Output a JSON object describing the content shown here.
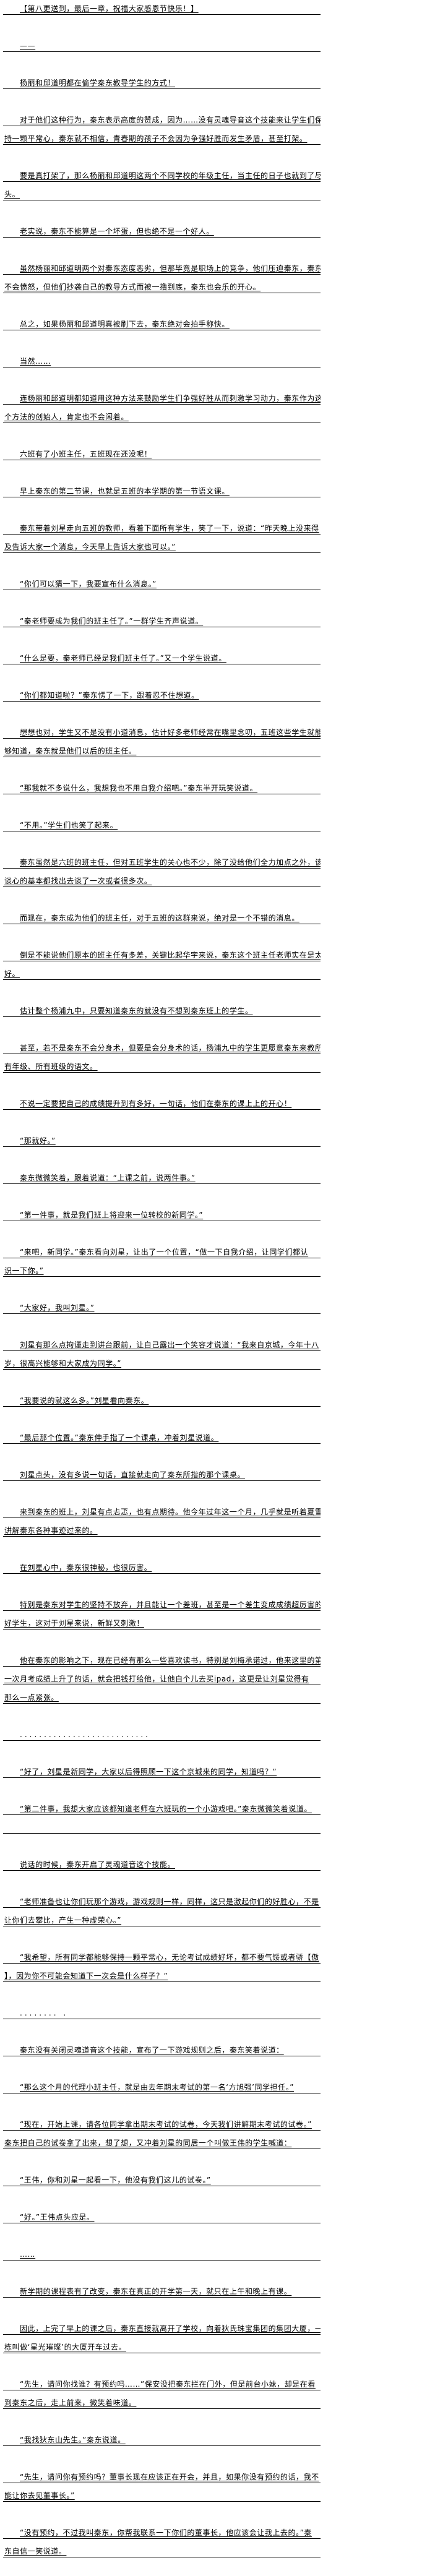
{
  "article": {
    "paragraphs": [
      {
        "lines": [
          "【第八更送到，最后一章，祝福大家感恩节快乐！】"
        ]
      },
      {
        "lines": [
          "——"
        ]
      },
      {
        "lines": [
          "杨丽和邱道明都在偷学秦东教导学生的方式！"
        ]
      },
      {
        "lines": [
          "对于他们这种行为，秦东表示高度的赞成，因为……没有灵魂导音这个技能来让学生们保",
          "持一颗平常心，秦东就不相信，青春期的孩子不会因为争强好胜而发生矛盾，甚至打架。"
        ]
      },
      {
        "lines": [
          "要是真打架了，那么杨丽和邱道明这两个不同学校的年级主任，当主任的日子也就到了尽",
          "头。"
        ]
      },
      {
        "lines": [
          "老实说，秦东不能算是一个坏蛋，但也绝不是一个好人。"
        ]
      },
      {
        "lines": [
          "虽然杨丽和邱道明两个对秦东态度恶劣，但那毕竟是职场上的竞争，他们压迫秦东，秦东",
          "不会愤怒，但他们抄袭自己的教导方式而被一撸到底，秦东也会乐的开心。"
        ]
      },
      {
        "lines": [
          "总之，如果杨丽和邱道明真被刷下去，秦东绝对会拍手称快。"
        ]
      },
      {
        "lines": [
          "当然……"
        ]
      },
      {
        "lines": [
          "连杨丽和邱道明都知道用这种方法来鼓励学生们争强好胜从而刺激学习动力，秦东作为这",
          "个方法的创始人，肯定也不会闲着。"
        ]
      },
      {
        "lines": [
          "六班有了小班主任，五班现在还没呢！"
        ]
      },
      {
        "lines": [
          "早上秦东的第二节课，也就是五班的本学期的第一节语文课。"
        ]
      },
      {
        "lines": [
          "秦东带着刘星走向五班的教师，看着下面所有学生，笑了一下，说道：“昨天晚上没来得",
          "及告诉大家一个消息，今天早上告诉大家也可以。”"
        ]
      },
      {
        "lines": [
          "“你们可以猜一下，我要宣布什么消息。”"
        ]
      },
      {
        "lines": [
          "“秦老师要成为我们的班主任了。”一群学生齐声说道。"
        ]
      },
      {
        "lines": [
          "“什么是要，秦老师已经是我们班主任了。”又一个学生说道。"
        ]
      },
      {
        "lines": [
          "“你们都知道啦？”秦东愣了一下，跟着忍不住想道。"
        ]
      },
      {
        "lines": [
          "想想也对，学生又不是没有小道消息，估计好多老师经常在嘴里念叨，五班这些学生就能",
          "够知道，秦东就是他们以后的班主任。"
        ]
      },
      {
        "lines": [
          "“那我就不多说什么，我想我也不用自我介绍吧。”秦东半开玩笑说道。"
        ]
      },
      {
        "lines": [
          "“不用。”学生们也笑了起来。"
        ]
      },
      {
        "lines": [
          "秦东虽然是六班的班主任，但对五班学生的关心也不少，除了没给他们全力加点之外，该",
          "谈心的基本都找出去谈了一次或者很多次。"
        ]
      },
      {
        "lines": [
          "而现在，秦东成为他们的班主任，对于五班的这群来说，绝对是一个不错的消息。"
        ]
      },
      {
        "lines": [
          "倒是不能说他们原本的班主任有多差，关键比起华宇来说，秦东这个班主任老师实在是太",
          "好。"
        ]
      },
      {
        "lines": [
          "估计整个杨浦九中，只要知道秦东的就没有不想到秦东班上的学生。"
        ]
      },
      {
        "lines": [
          "甚至，若不是秦东不会分身术，但要是会分身术的话，杨浦九中的学生更愿意秦东来教所",
          "有年级、所有班级的语文。"
        ]
      },
      {
        "lines": [
          "不说一定要把自己的成绩提升到有多好，一句话，他们在秦东的课上上的开心！"
        ]
      },
      {
        "lines": [
          "“那就好。”"
        ]
      },
      {
        "lines": [
          "秦东微微笑着，跟着说道：“上课之前，说两件事。”"
        ]
      },
      {
        "lines": [
          "“第一件事，就是我们班上将迎来一位转校的新同学。”"
        ]
      },
      {
        "lines": [
          "“来吧，新同学。”秦东看向刘星，让出了一个位置，“做一下自我介绍，让同学们都认",
          "识一下你。”"
        ]
      },
      {
        "lines": [
          "“大家好，我叫刘星。”"
        ]
      },
      {
        "lines": [
          "刘星有那么点拘谨走到讲台跟前，让自己露出一个笑容才说道：“我来自京城，今年十八",
          "岁，很高兴能够和大家成为同学。”"
        ]
      },
      {
        "lines": [
          "“我要说的就这么多。”刘星看向秦东。"
        ]
      },
      {
        "lines": [
          "“最后那个位置。”秦东伸手指了一个课桌，冲着刘星说道。"
        ]
      },
      {
        "lines": [
          "刘星点头，没有多说一句话，直接就走向了秦东所指的那个课桌。"
        ]
      },
      {
        "lines": [
          "来到秦东的班上，刘星有点忐忑，也有点期待。他今年过年这一个月，几乎就是听着夏雪",
          "讲解秦东各种事迹过来的。"
        ]
      },
      {
        "lines": [
          "在刘星心中，秦东很神秘，也很厉害。"
        ]
      },
      {
        "lines": [
          "特别是秦东对学生的坚持不放弃，并且能让一个差班，甚至是一个差生变成成绩超厉害的",
          "好学生，这对于刘星来说，新鲜又刺激！"
        ]
      },
      {
        "lines": [
          "他在秦东的影响之下，现在已经有那么一些喜欢读书，特别是刘梅承诺过，他来这里的第",
          "一次月考成绩上升了的话，就会把钱打给他，让他自个儿去买ipad，这更是让刘星觉得有",
          "那么一点紧张。"
        ]
      },
      {
        "lines": [
          "..........................."
        ],
        "dots": true
      },
      {
        "lines": [
          "“好了，刘星是新同学，大家以后得照顾一下这个京城来的同学，知道吗？”"
        ]
      },
      {
        "lines": [
          "“第二件事，我想大家应该都知道老师在六班玩的一个小游戏吧。”秦东微微笑着说道。",
          ""
        ]
      },
      {
        "lines": [
          "说话的时候，秦东开启了灵魂道音这个技能。"
        ]
      },
      {
        "lines": [
          "“老师准备也让你们玩那个游戏，游戏规则一样，同样，这只是激起你们的好胜心，不是",
          "让你们去攀比，产生一种虚荣心。”"
        ]
      },
      {
        "lines": [
          "“我希望，所有同学都能够保持一颗平常心，无论考试成绩好坏，都不要气馁或者骄【傲",
          "】，因为你不可能会知道下一次会是什么样子？”"
        ]
      },
      {
        "lines": [
          "........ ."
        ],
        "dots": true
      },
      {
        "lines": [
          "秦东没有关闭灵魂道音这个技能，宣布了一下游戏规则之后，秦东笑着说道："
        ]
      },
      {
        "lines": [
          "“那么这个月的代理小班主任，就是由去年期末考试的第一名‘方旭强’同学担任。”"
        ]
      },
      {
        "lines": [
          "“现在，开始上课，请各位同学拿出期末考试的试卷，今天我们讲解期末考试的试卷。”",
          "秦东把自己的试卷拿了出来，想了想，又冲着刘星的同居一个叫做王伟的学生喊道："
        ]
      },
      {
        "lines": [
          "“王伟，你和刘星一起看一下，他没有我们这儿的试卷。”"
        ]
      },
      {
        "lines": [
          "“好。”王伟点头应是。"
        ]
      },
      {
        "lines": [
          "……"
        ]
      },
      {
        "lines": [
          "新学期的课程表有了改变，秦东在真正的开学第一天，就只在上午和晚上有课。"
        ]
      },
      {
        "lines": [
          "因此，上完了早上的课之后，秦东直接就离开了学校，向着狄氏珠宝集团的集团大厦，一",
          "栋叫做‘星光璀璨’的大厦开车过去。"
        ]
      },
      {
        "lines": [
          "“先生，请问你找谁？有预约吗……”保安没把秦东拦在门外，但是前台小妹，却是在看",
          "到秦东之后，走上前来，微笑着味道。"
        ]
      },
      {
        "lines": [
          "“我找狄东山先生。”秦东说道。"
        ]
      },
      {
        "lines": [
          "“先生，请问你有预约吗？董事长现在应该正在开会，并且，如果你没有预约的话，我不",
          "能让你去见董事长。”"
        ]
      },
      {
        "lines": [
          "“没有预约，不过我叫秦东，你帮我联系一下你们的董事长，他应该会让我上去的。”秦",
          "东自信一笑说道。"
        ]
      }
    ]
  }
}
